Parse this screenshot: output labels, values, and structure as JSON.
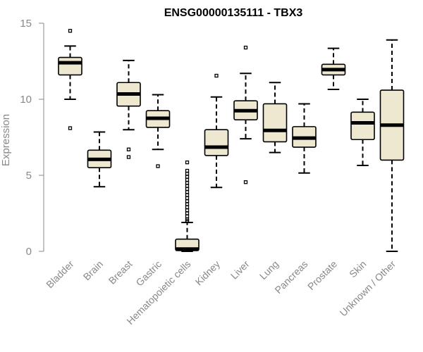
{
  "chart_data": {
    "type": "box",
    "title": "ENSG00000135111 - TBX3",
    "xlabel": "",
    "ylabel": "Expression",
    "ylim": [
      0,
      15
    ],
    "yticks": [
      0,
      5,
      10,
      15
    ],
    "colors": {
      "box_fill": "#efe8d0",
      "box_stroke": "#000000",
      "median": "#000000",
      "axis": "#888888",
      "text": "#888888"
    },
    "categories": [
      "Bladder",
      "Brain",
      "Breast",
      "Gastric",
      "Hematopoietic cells",
      "Kidney",
      "Liver",
      "Lung",
      "Pancreas",
      "Prostate",
      "Skin",
      "Unknown / Other"
    ],
    "boxes": [
      {
        "q1": 11.6,
        "median": 12.4,
        "q3": 12.75,
        "whisker_low": 10.0,
        "whisker_high": 13.5,
        "outliers": [
          14.5,
          8.1
        ]
      },
      {
        "q1": 5.5,
        "median": 6.05,
        "q3": 6.65,
        "whisker_low": 4.25,
        "whisker_high": 7.85,
        "outliers": []
      },
      {
        "q1": 9.55,
        "median": 10.35,
        "q3": 11.1,
        "whisker_low": 8.0,
        "whisker_high": 12.55,
        "outliers": [
          6.7,
          6.2
        ]
      },
      {
        "q1": 8.15,
        "median": 8.75,
        "q3": 9.25,
        "whisker_low": 6.7,
        "whisker_high": 10.3,
        "outliers": [
          5.6
        ]
      },
      {
        "q1": 0.05,
        "median": 0.15,
        "q3": 0.8,
        "whisker_low": 0.0,
        "whisker_high": 1.9,
        "outliers": [
          2.0,
          2.1,
          2.3,
          2.5,
          2.7,
          2.9,
          3.1,
          3.3,
          3.5,
          3.7,
          3.9,
          4.1,
          4.3,
          4.5,
          4.7,
          4.9,
          5.1,
          5.3,
          5.85
        ]
      },
      {
        "q1": 6.3,
        "median": 6.85,
        "q3": 8.0,
        "whisker_low": 4.2,
        "whisker_high": 10.15,
        "outliers": [
          11.55
        ]
      },
      {
        "q1": 8.65,
        "median": 9.25,
        "q3": 9.9,
        "whisker_low": 7.4,
        "whisker_high": 11.7,
        "outliers": [
          13.4,
          4.55
        ]
      },
      {
        "q1": 7.2,
        "median": 7.95,
        "q3": 9.7,
        "whisker_low": 6.5,
        "whisker_high": 11.1,
        "outliers": []
      },
      {
        "q1": 6.85,
        "median": 7.45,
        "q3": 8.2,
        "whisker_low": 5.15,
        "whisker_high": 9.7,
        "outliers": []
      },
      {
        "q1": 11.6,
        "median": 11.95,
        "q3": 12.3,
        "whisker_low": 10.65,
        "whisker_high": 13.35,
        "outliers": []
      },
      {
        "q1": 7.35,
        "median": 8.45,
        "q3": 9.15,
        "whisker_low": 5.65,
        "whisker_high": 10.0,
        "outliers": []
      },
      {
        "q1": 6.0,
        "median": 8.3,
        "q3": 10.6,
        "whisker_low": 0.0,
        "whisker_high": 13.9,
        "outliers": []
      }
    ]
  }
}
